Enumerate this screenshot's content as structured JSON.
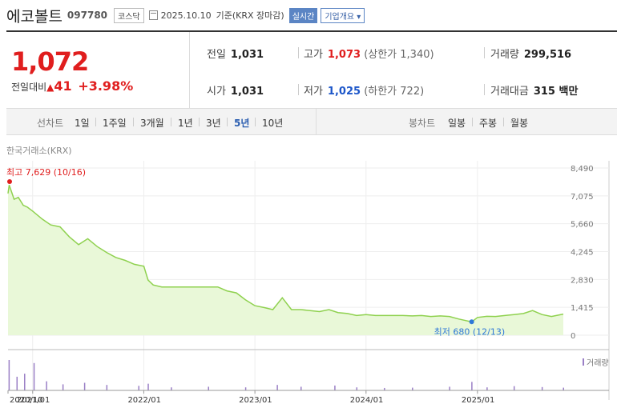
{
  "header": {
    "name": "에코볼트",
    "code": "097780",
    "market": "코스닥",
    "date": "2025.10.10",
    "basis": "기준(KRX 장마감)",
    "realtime": "실시간",
    "company_info": "기업개요 ▾"
  },
  "quote": {
    "price": "1,072",
    "change_label": "전일대비",
    "change_value": "41",
    "change_pct": "+3.98%",
    "prev_label": "전일",
    "prev_value": "1,031",
    "open_label": "시가",
    "open_value": "1,031",
    "high_label": "고가",
    "high_value": "1,073",
    "upper_limit": "(상한가 1,340)",
    "low_label": "저가",
    "low_value": "1,025",
    "lower_limit": "(하한가 722)",
    "volume_label": "거래량",
    "volume_value": "299,516",
    "amount_label": "거래대금",
    "amount_value": "315 백만"
  },
  "tabs": {
    "line_label": "선차트",
    "periods": [
      "1일",
      "1주일",
      "3개월",
      "1년",
      "3년",
      "5년",
      "10년"
    ],
    "active_period": "5년",
    "candle_label": "봉차트",
    "candles": [
      "일봉",
      "주봉",
      "월봉"
    ]
  },
  "exchange_label": "한국거래소(KRX)",
  "colors": {
    "up": "#e01e1e",
    "down": "#1c56c9",
    "line": "#8fd14f",
    "fill": "#e9f8d8"
  },
  "chart_data": {
    "type": "area",
    "title": "",
    "xlabel": "",
    "ylabel": "",
    "ylim": [
      0,
      8490
    ],
    "yticks": [
      "8,490",
      "7,075",
      "5,660",
      "4,245",
      "2,830",
      "1,415",
      "0"
    ],
    "xlim": [
      "2020-10-12",
      "2025-10-10"
    ],
    "xticks": [
      {
        "date": "2020-10-12",
        "label": "2020/10"
      },
      {
        "date": "2021-01-01",
        "label": "2021/01"
      },
      {
        "date": "2022-01-01",
        "label": "2022/01"
      },
      {
        "date": "2023-01-01",
        "label": "2023/01"
      },
      {
        "date": "2024-01-01",
        "label": "2024/01"
      },
      {
        "date": "2025-01-01",
        "label": "2025/01"
      }
    ],
    "x": [
      "2020-10-12",
      "2020-10-16",
      "2020-11-01",
      "2020-11-15",
      "2020-12-01",
      "2020-12-15",
      "2021-01-01",
      "2021-02-01",
      "2021-03-01",
      "2021-04-01",
      "2021-05-01",
      "2021-06-01",
      "2021-07-01",
      "2021-08-01",
      "2021-09-01",
      "2021-10-01",
      "2021-11-01",
      "2021-12-01",
      "2022-01-01",
      "2022-01-15",
      "2022-02-01",
      "2022-03-01",
      "2022-04-01",
      "2022-05-01",
      "2022-06-01",
      "2022-07-01",
      "2022-08-01",
      "2022-09-01",
      "2022-10-01",
      "2022-11-01",
      "2022-12-01",
      "2023-01-01",
      "2023-02-01",
      "2023-03-01",
      "2023-04-01",
      "2023-05-01",
      "2023-06-01",
      "2023-07-01",
      "2023-08-01",
      "2023-09-01",
      "2023-10-01",
      "2023-11-01",
      "2023-12-01",
      "2024-01-01",
      "2024-02-01",
      "2024-03-01",
      "2024-04-01",
      "2024-05-01",
      "2024-06-01",
      "2024-07-01",
      "2024-08-01",
      "2024-09-01",
      "2024-10-01",
      "2024-11-01",
      "2024-12-13",
      "2025-01-01",
      "2025-02-01",
      "2025-03-01",
      "2025-04-01",
      "2025-05-01",
      "2025-06-01",
      "2025-07-01",
      "2025-08-01",
      "2025-09-01",
      "2025-10-10"
    ],
    "values": [
      7200,
      7629,
      6900,
      7000,
      6600,
      6500,
      6300,
      5900,
      5600,
      5500,
      5000,
      4600,
      4900,
      4500,
      4200,
      3950,
      3800,
      3600,
      3500,
      2800,
      2550,
      2450,
      2450,
      2450,
      2450,
      2450,
      2450,
      2450,
      2250,
      2150,
      1800,
      1500,
      1400,
      1300,
      1900,
      1300,
      1300,
      1250,
      1200,
      1300,
      1150,
      1100,
      1000,
      1050,
      1000,
      1000,
      1000,
      1000,
      980,
      1000,
      950,
      980,
      950,
      820,
      680,
      900,
      960,
      950,
      1000,
      1050,
      1100,
      1250,
      1050,
      950,
      1072
    ],
    "high": {
      "label": "최고",
      "value": "7,629",
      "date": "(10/16)"
    },
    "low": {
      "label": "최저",
      "value": "680",
      "date": "(12/13)"
    },
    "volume": {
      "legend": "거래량",
      "dates": [
        "2020-10-15",
        "2020-11-10",
        "2020-12-05",
        "2021-01-05",
        "2021-02-15",
        "2021-04-10",
        "2021-06-20",
        "2021-09-01",
        "2021-12-15",
        "2022-01-15",
        "2022-04-01",
        "2022-08-01",
        "2022-12-01",
        "2023-03-15",
        "2023-06-01",
        "2023-09-20",
        "2023-12-01",
        "2024-03-01",
        "2024-06-01",
        "2024-10-01",
        "2024-12-13",
        "2025-02-01",
        "2025-05-01",
        "2025-08-01",
        "2025-10-10"
      ],
      "values": [
        100,
        45,
        55,
        90,
        30,
        20,
        25,
        18,
        15,
        22,
        10,
        12,
        10,
        18,
        12,
        16,
        10,
        8,
        9,
        12,
        28,
        10,
        14,
        11,
        9
      ]
    }
  }
}
